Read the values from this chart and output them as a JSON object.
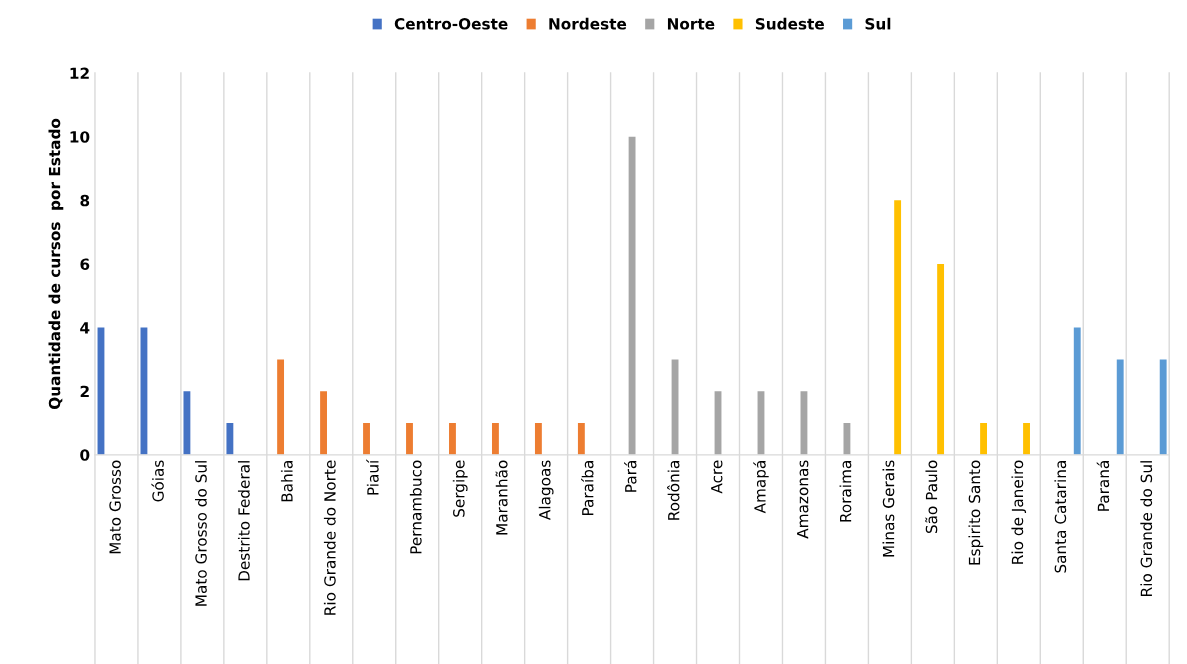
{
  "chart_data": {
    "type": "bar",
    "ylabel": "Quantidade de cursos  por Estado",
    "categories": [
      "Mato Grosso",
      "Góias",
      "Mato Grosso do Sul",
      "Destrito Federal",
      "Bahia",
      "Rio Grande do Norte",
      "Piauí",
      "Pernambuco",
      "Sergipe",
      "Maranhão",
      "Alagoas",
      "Paraíba",
      "Pará",
      "Rodônia",
      "Acre",
      "Amapá",
      "Amazonas",
      "Roraima",
      "Minas Gerais",
      "São Paulo",
      "Espirito Santo",
      "Rio de Janeiro",
      "Santa Catarina",
      "Paraná",
      "Rio Grande do Sul"
    ],
    "series": [
      {
        "name": "Centro-Oeste",
        "color": "#4472c4",
        "values": [
          4,
          4,
          2,
          1,
          null,
          null,
          null,
          null,
          null,
          null,
          null,
          null,
          null,
          null,
          null,
          null,
          null,
          null,
          null,
          null,
          null,
          null,
          null,
          null,
          null
        ]
      },
      {
        "name": "Nordeste",
        "color": "#ed7d31",
        "values": [
          null,
          null,
          null,
          null,
          3,
          2,
          1,
          1,
          1,
          1,
          1,
          1,
          null,
          null,
          null,
          null,
          null,
          null,
          null,
          null,
          null,
          null,
          null,
          null,
          null
        ]
      },
      {
        "name": "Norte",
        "color": "#a5a5a5",
        "values": [
          null,
          null,
          null,
          null,
          null,
          null,
          null,
          null,
          null,
          null,
          null,
          null,
          10,
          3,
          2,
          2,
          2,
          1,
          null,
          null,
          null,
          null,
          null,
          null,
          null
        ]
      },
      {
        "name": "Sudeste",
        "color": "#ffc000",
        "values": [
          null,
          null,
          null,
          null,
          null,
          null,
          null,
          null,
          null,
          null,
          null,
          null,
          null,
          null,
          null,
          null,
          null,
          null,
          8,
          6,
          1,
          1,
          null,
          null,
          null
        ]
      },
      {
        "name": "Sul",
        "color": "#5b9bd5",
        "values": [
          null,
          null,
          null,
          null,
          null,
          null,
          null,
          null,
          null,
          null,
          null,
          null,
          null,
          null,
          null,
          null,
          null,
          null,
          null,
          null,
          null,
          null,
          4,
          3,
          3
        ]
      }
    ],
    "ylim": [
      0,
      12
    ],
    "yticks": [
      0,
      2,
      4,
      6,
      8,
      10,
      12
    ],
    "grid": "x",
    "legend": "top"
  }
}
